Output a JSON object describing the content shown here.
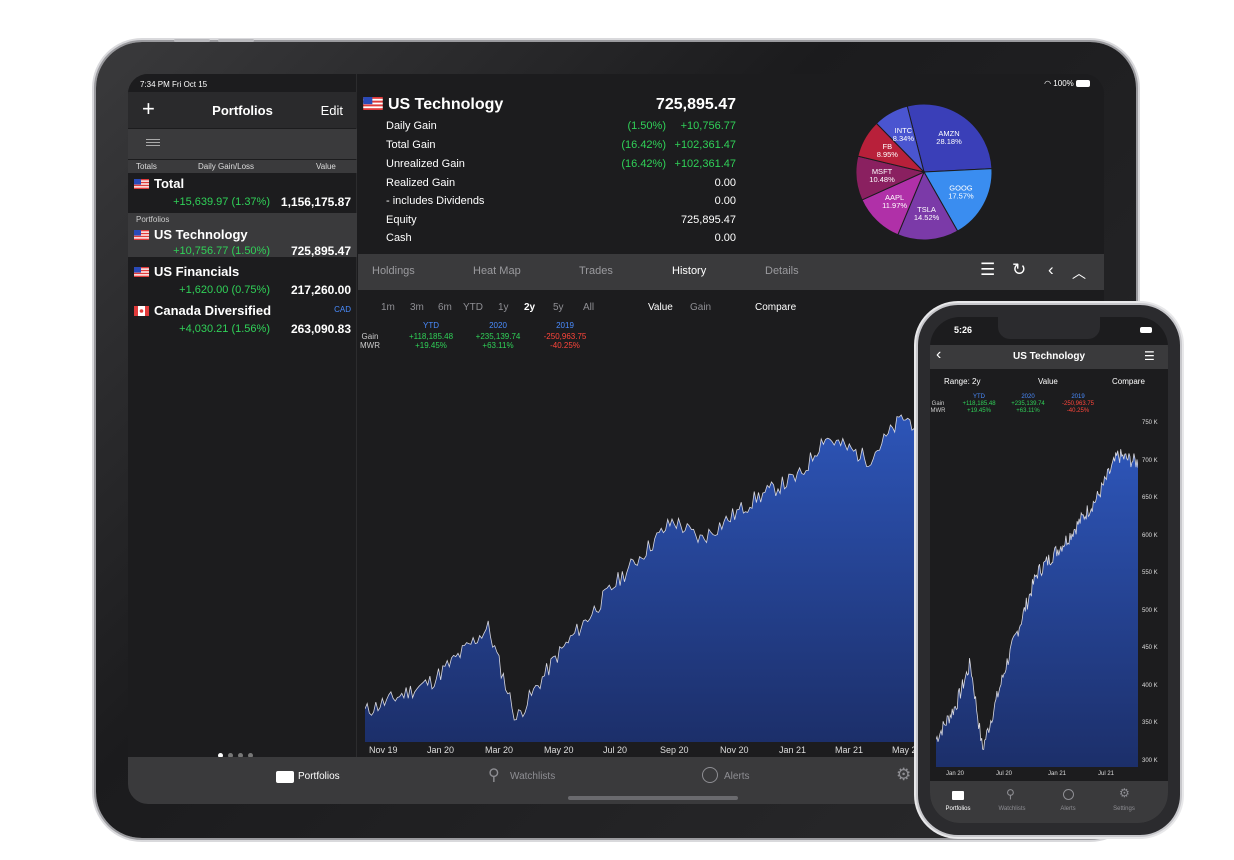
{
  "ipad": {
    "status": {
      "time": "7:34 PM  Fri Oct 15",
      "battery": "100%"
    },
    "sidebar": {
      "add_label": "+",
      "title": "Portfolios",
      "edit_label": "Edit",
      "columns": {
        "totals": "Totals",
        "daily": "Daily Gain/Loss",
        "value": "Value"
      },
      "total": {
        "name": "Total",
        "gain": "+15,639.97  (1.37%)",
        "value": "1,156,175.87"
      },
      "section_label": "Portfolios",
      "portfolios": [
        {
          "name": "US Technology",
          "gain": "+10,756.77  (1.50%)",
          "value": "725,895.47",
          "currency": ""
        },
        {
          "name": "US Financials",
          "gain": "+1,620.00  (0.75%)",
          "value": "217,260.00",
          "currency": ""
        },
        {
          "name": "Canada Diversified",
          "gain": "+4,030.21  (1.56%)",
          "value": "263,090.83",
          "currency": "CAD"
        }
      ]
    },
    "summary": {
      "title": "US Technology",
      "total": "725,895.47",
      "rows": [
        {
          "label": "Daily Gain",
          "pct": "(1.50%)",
          "amount": "+10,756.77"
        },
        {
          "label": "Total Gain",
          "pct": "(16.42%)",
          "amount": "+102,361.47"
        },
        {
          "label": "Unrealized Gain",
          "pct": "(16.42%)",
          "amount": "+102,361.47"
        },
        {
          "label": "Realized Gain",
          "pct": "",
          "amount": "0.00"
        },
        {
          "label": " - includes Dividends",
          "pct": "",
          "amount": "0.00"
        },
        {
          "label": "Equity",
          "pct": "",
          "amount": "725,895.47"
        },
        {
          "label": "Cash",
          "pct": "",
          "amount": "0.00"
        }
      ]
    },
    "tabs": [
      "Holdings",
      "Heat Map",
      "Trades",
      "History",
      "Details"
    ],
    "active_tab": "History",
    "ranges": [
      "1m",
      "3m",
      "6m",
      "YTD",
      "1y",
      "2y",
      "5y",
      "All"
    ],
    "active_range": "2y",
    "value_label": "Value",
    "gain_label": "Gain",
    "compare_label": "Compare",
    "stats": {
      "row_gain": "Gain",
      "row_mwr": "MWR",
      "cols": [
        {
          "year": "YTD",
          "gain": "+118,185.48",
          "mwr": "+19.45%"
        },
        {
          "year": "2020",
          "gain": "+235,139.74",
          "mwr": "+63.11%"
        },
        {
          "year": "2019",
          "gain": "-250,963.75",
          "mwr": "-40.25%"
        }
      ]
    },
    "x_labels": [
      "Nov 19",
      "Jan 20",
      "Mar 20",
      "May 20",
      "Jul 20",
      "Sep 20",
      "Nov 20",
      "Jan 21",
      "Mar 21",
      "May 2"
    ],
    "bottom_tabs": [
      "Portfolios",
      "Watchlists",
      "Alerts"
    ]
  },
  "pie": [
    {
      "label": "AMZN",
      "pct": "28.18%",
      "color": "#3a3fb8"
    },
    {
      "label": "GOOG",
      "pct": "17.57%",
      "color": "#3a8df0"
    },
    {
      "label": "TSLA",
      "pct": "14.52%",
      "color": "#7b3aa8"
    },
    {
      "label": "AAPL",
      "pct": "11.97%",
      "color": "#b030a8"
    },
    {
      "label": "MSFT",
      "pct": "10.48%",
      "color": "#8a2060"
    },
    {
      "label": "FB",
      "pct": "8.95%",
      "color": "#b8203a"
    },
    {
      "label": "INTC",
      "pct": "8.34%",
      "color": "#4a55d0"
    }
  ],
  "iphone": {
    "time": "5:26",
    "title": "US Technology",
    "range_label": "Range: 2y",
    "value_label": "Value",
    "compare_label": "Compare",
    "y_labels": [
      "750 K",
      "700 K",
      "650 K",
      "600 K",
      "550 K",
      "500 K",
      "450 K",
      "400 K",
      "350 K",
      "300 K"
    ],
    "x_labels": [
      "Jan 20",
      "Jul 20",
      "Jan 21",
      "Jul 21"
    ],
    "bottom_tabs": [
      "Portfolios",
      "Watchlists",
      "Alerts",
      "Settings"
    ]
  },
  "colors": {
    "green": "#30d158",
    "red": "#ff453a",
    "blue_label": "#4a8cff",
    "chart_fill": "#2a4a9a"
  }
}
